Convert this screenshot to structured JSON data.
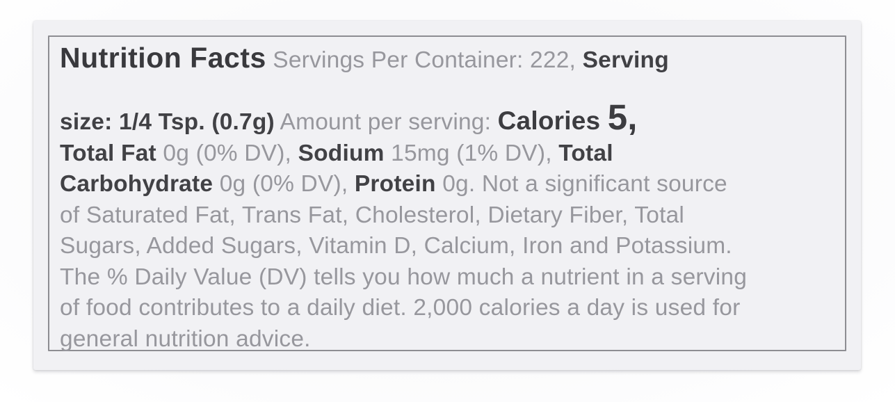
{
  "nutrition_facts": {
    "title": "Nutrition Facts",
    "servings_per_container": "222",
    "serving_size": "1/4 Tsp. (0.7g)",
    "amount_per_serving": {
      "calories": "5",
      "total_fat": "0g (0% DV)",
      "sodium": "15mg (1% DV)",
      "total_carbohydrate": "0g (0% DV)",
      "protein": "0g"
    },
    "not_significant_source": "Saturated Fat, Trans Fat, Cholesterol, Dietary Fiber, Total Sugars, Added Sugars, Vitamin D, Calcium, Iron and Potassium",
    "footnote": "The % Daily Value (DV) tells you how much a nutrient in a serving of food contributes to a daily diet. 2,000 calories a day is used for general nutrition advice."
  },
  "label": {
    "lines": [
      {
        "segments": [
          {
            "text": "Nutrition Facts",
            "style": "title"
          },
          {
            "text": " Servings Per Container: 222, ",
            "style": "light"
          },
          {
            "text": "Serving",
            "style": "bold"
          }
        ]
      },
      {
        "segments": [
          {
            "text": "size: 1/4 Tsp. (0.7g)",
            "style": "bold"
          },
          {
            "text": " Amount per serving: ",
            "style": "light"
          },
          {
            "text": "Calories ",
            "style": "calories"
          },
          {
            "text": "5,",
            "style": "big-number"
          }
        ]
      },
      {
        "segments": [
          {
            "text": "Total Fat",
            "style": "bold"
          },
          {
            "text": " 0g (0% DV), ",
            "style": "light"
          },
          {
            "text": "Sodium",
            "style": "bold"
          },
          {
            "text": " 15mg (1% DV), ",
            "style": "light"
          },
          {
            "text": "Total",
            "style": "bold"
          }
        ]
      },
      {
        "segments": [
          {
            "text": "Carbohydrate",
            "style": "bold"
          },
          {
            "text": " 0g (0% DV), ",
            "style": "light"
          },
          {
            "text": "Protein",
            "style": "bold"
          },
          {
            "text": " 0g. Not a significant source",
            "style": "light"
          }
        ]
      },
      {
        "segments": [
          {
            "text": "of Saturated Fat, Trans Fat, Cholesterol, Dietary Fiber, Total",
            "style": "light"
          }
        ]
      },
      {
        "segments": [
          {
            "text": "Sugars, Added Sugars, Vitamin D, Calcium, Iron and Potassium.",
            "style": "light"
          }
        ]
      },
      {
        "segments": [
          {
            "text": "The % Daily Value (DV) tells you how much a nutrient in a serving",
            "style": "light"
          }
        ]
      },
      {
        "segments": [
          {
            "text": "of food contributes to a daily diet. 2,000 calories a day is used for",
            "style": "light"
          }
        ]
      },
      {
        "segments": [
          {
            "text": "general nutrition advice.",
            "style": "light"
          }
        ]
      }
    ]
  },
  "colors": {
    "text_dark": "#414145",
    "text_light": "#97979d",
    "card_background": "#f1f1f4",
    "border": "#8d8d92",
    "page_background": "#ffffff"
  }
}
